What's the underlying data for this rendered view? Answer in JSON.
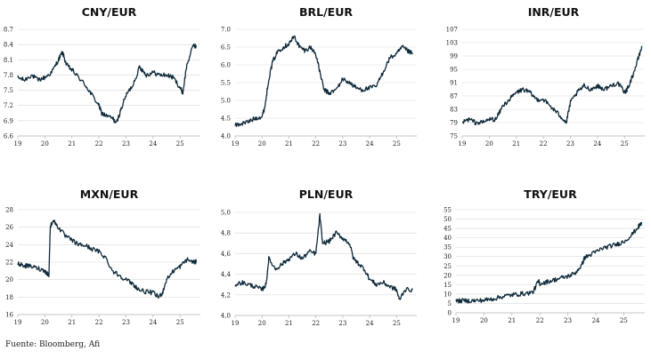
{
  "source": "Fuente: Bloomberg, Afi",
  "colors": {
    "line": "#0f2a3a",
    "grid": "#d9d9d9",
    "axis": "#b0b0b0",
    "text": "#222222"
  },
  "chart_data": [
    {
      "type": "line",
      "title": "CNY/EUR",
      "xlabel": "",
      "ylabel": "",
      "x_ticks": [
        "19",
        "20",
        "21",
        "22",
        "23",
        "24",
        "25"
      ],
      "y_ticks": [
        6.6,
        6.9,
        7.2,
        7.5,
        7.8,
        8.1,
        8.4,
        8.7
      ],
      "y_tick_labels": [
        "6.6",
        "6.9",
        "7.2",
        "7.5",
        "7.8",
        "8.1",
        "8.4",
        "8.7"
      ],
      "xlim": [
        2019,
        2025.75
      ],
      "ylim": [
        6.6,
        8.7
      ],
      "grid": "horizontal",
      "series": [
        {
          "x": [
            2019.0,
            2019.25,
            2019.5,
            2019.75,
            2020.0,
            2020.25,
            2020.5,
            2020.65,
            2020.8,
            2021.0,
            2021.25,
            2021.5,
            2021.75,
            2022.0,
            2022.1,
            2022.25,
            2022.5,
            2022.65,
            2022.8,
            2023.0,
            2023.25,
            2023.5,
            2023.6,
            2023.75,
            2024.0,
            2024.25,
            2024.5,
            2024.75,
            2025.0,
            2025.1,
            2025.25,
            2025.5,
            2025.6
          ],
          "y": [
            7.75,
            7.7,
            7.8,
            7.7,
            7.75,
            7.85,
            8.1,
            8.25,
            8.0,
            7.9,
            7.75,
            7.6,
            7.4,
            7.2,
            7.05,
            7.0,
            6.95,
            6.85,
            7.1,
            7.4,
            7.6,
            7.95,
            7.9,
            7.8,
            7.85,
            7.8,
            7.8,
            7.75,
            7.55,
            7.45,
            8.0,
            8.4,
            8.35
          ]
        }
      ]
    },
    {
      "type": "line",
      "title": "BRL/EUR",
      "xlabel": "",
      "ylabel": "",
      "x_ticks": [
        "19",
        "20",
        "21",
        "22",
        "23",
        "24",
        "25"
      ],
      "y_ticks": [
        4.0,
        4.5,
        5.0,
        5.5,
        6.0,
        6.5,
        7.0
      ],
      "y_tick_labels": [
        "4.0",
        "4.5",
        "5.0",
        "5.5",
        "6.0",
        "6.5",
        "7.0"
      ],
      "xlim": [
        2019,
        2025.75
      ],
      "ylim": [
        4.0,
        7.0
      ],
      "grid": "horizontal",
      "series": [
        {
          "x": [
            2019.0,
            2019.25,
            2019.5,
            2019.75,
            2020.0,
            2020.1,
            2020.25,
            2020.4,
            2020.6,
            2020.8,
            2021.0,
            2021.2,
            2021.4,
            2021.6,
            2021.8,
            2022.0,
            2022.15,
            2022.3,
            2022.5,
            2022.75,
            2023.0,
            2023.25,
            2023.5,
            2023.75,
            2024.0,
            2024.25,
            2024.5,
            2024.75,
            2025.0,
            2025.2,
            2025.4,
            2025.6
          ],
          "y": [
            4.3,
            4.35,
            4.4,
            4.5,
            4.55,
            4.8,
            5.6,
            6.1,
            6.4,
            6.5,
            6.6,
            6.8,
            6.5,
            6.4,
            6.5,
            6.3,
            5.8,
            5.3,
            5.2,
            5.3,
            5.6,
            5.5,
            5.35,
            5.3,
            5.35,
            5.4,
            5.8,
            6.2,
            6.3,
            6.5,
            6.4,
            6.3
          ]
        }
      ]
    },
    {
      "type": "line",
      "title": "INR/EUR",
      "xlabel": "",
      "ylabel": "",
      "x_ticks": [
        "19",
        "20",
        "21",
        "22",
        "23",
        "24",
        "25"
      ],
      "y_ticks": [
        75,
        79,
        83,
        87,
        91,
        95,
        99,
        103,
        107
      ],
      "y_tick_labels": [
        "75",
        "79",
        "83",
        "87",
        "91",
        "95",
        "99",
        "103",
        "107"
      ],
      "xlim": [
        2019,
        2025.75
      ],
      "ylim": [
        75,
        107
      ],
      "grid": "horizontal",
      "series": [
        {
          "x": [
            2019.0,
            2019.25,
            2019.5,
            2019.75,
            2020.0,
            2020.25,
            2020.5,
            2020.75,
            2021.0,
            2021.25,
            2021.5,
            2021.75,
            2022.0,
            2022.25,
            2022.5,
            2022.75,
            2022.85,
            2023.0,
            2023.25,
            2023.5,
            2023.75,
            2024.0,
            2024.25,
            2024.5,
            2024.75,
            2025.0,
            2025.1,
            2025.3,
            2025.5,
            2025.65
          ],
          "y": [
            79,
            80,
            79,
            79,
            80,
            80,
            84,
            86,
            88,
            89,
            88,
            86,
            86,
            84,
            82,
            80,
            79,
            85,
            88,
            90,
            89,
            90,
            89,
            90,
            91,
            88,
            89,
            93,
            98,
            102
          ]
        }
      ]
    },
    {
      "type": "line",
      "title": "MXN/EUR",
      "xlabel": "",
      "ylabel": "",
      "x_ticks": [
        "19",
        "20",
        "21",
        "22",
        "23",
        "24",
        "25"
      ],
      "y_ticks": [
        16,
        18,
        20,
        22,
        24,
        26,
        28
      ],
      "y_tick_labels": [
        "16",
        "18",
        "20",
        "22",
        "24",
        "26",
        "28"
      ],
      "xlim": [
        2019,
        2025.75
      ],
      "ylim": [
        16,
        28
      ],
      "grid": "horizontal",
      "series": [
        {
          "x": [
            2019.0,
            2019.25,
            2019.5,
            2019.75,
            2020.0,
            2020.15,
            2020.2,
            2020.3,
            2020.5,
            2020.75,
            2021.0,
            2021.25,
            2021.5,
            2021.75,
            2022.0,
            2022.25,
            2022.5,
            2022.75,
            2023.0,
            2023.25,
            2023.5,
            2023.75,
            2024.0,
            2024.2,
            2024.35,
            2024.5,
            2024.75,
            2025.0,
            2025.25,
            2025.5,
            2025.6
          ],
          "y": [
            21.8,
            21.6,
            21.5,
            21.3,
            21.0,
            20.5,
            26.0,
            26.8,
            26.0,
            25.0,
            24.5,
            24.0,
            23.9,
            23.5,
            23.2,
            22.5,
            21.0,
            20.5,
            20.0,
            19.5,
            18.8,
            18.6,
            18.5,
            18.0,
            18.5,
            20.0,
            21.0,
            21.5,
            22.3,
            22.0,
            22.0
          ]
        }
      ]
    },
    {
      "type": "line",
      "title": "PLN/EUR",
      "xlabel": "",
      "ylabel": "",
      "x_ticks": [
        "19",
        "20",
        "21",
        "22",
        "23",
        "24",
        "25"
      ],
      "y_ticks": [
        4.0,
        4.2,
        4.4,
        4.6,
        4.8,
        5.0
      ],
      "y_tick_labels": [
        "4,0",
        "4,2",
        "4,4",
        "4,6",
        "4,8",
        "5,0"
      ],
      "xlim": [
        2019,
        2025.75
      ],
      "ylim": [
        4.0,
        5.0
      ],
      "grid": "horizontal",
      "series": [
        {
          "x": [
            2019.0,
            2019.25,
            2019.5,
            2019.75,
            2020.0,
            2020.15,
            2020.25,
            2020.5,
            2020.75,
            2021.0,
            2021.25,
            2021.5,
            2021.75,
            2022.0,
            2022.15,
            2022.25,
            2022.5,
            2022.75,
            2023.0,
            2023.25,
            2023.4,
            2023.6,
            2023.8,
            2024.0,
            2024.25,
            2024.5,
            2024.75,
            2025.0,
            2025.1,
            2025.3,
            2025.6
          ],
          "y": [
            4.3,
            4.32,
            4.3,
            4.28,
            4.25,
            4.3,
            4.55,
            4.45,
            4.5,
            4.55,
            4.6,
            4.55,
            4.62,
            4.6,
            4.97,
            4.7,
            4.72,
            4.8,
            4.75,
            4.7,
            4.55,
            4.5,
            4.45,
            4.35,
            4.3,
            4.32,
            4.28,
            4.25,
            4.15,
            4.25,
            4.25
          ]
        }
      ]
    },
    {
      "type": "line",
      "title": "TRY/EUR",
      "xlabel": "",
      "ylabel": "",
      "x_ticks": [
        "19",
        "20",
        "21",
        "22",
        "23",
        "24",
        "25"
      ],
      "y_ticks": [
        0,
        5,
        10,
        15,
        20,
        25,
        30,
        35,
        40,
        45,
        50,
        55
      ],
      "y_tick_labels": [
        "0",
        "5",
        "10",
        "15",
        "20",
        "25",
        "30",
        "35",
        "40",
        "45",
        "50",
        "55"
      ],
      "xlim": [
        2019,
        2025.75
      ],
      "ylim": [
        0,
        55
      ],
      "grid": "horizontal",
      "series": [
        {
          "x": [
            2019.0,
            2019.25,
            2019.5,
            2019.75,
            2020.0,
            2020.25,
            2020.5,
            2020.75,
            2021.0,
            2021.25,
            2021.5,
            2021.75,
            2021.95,
            2022.0,
            2022.25,
            2022.5,
            2022.75,
            2023.0,
            2023.25,
            2023.5,
            2023.6,
            2023.75,
            2024.0,
            2024.25,
            2024.5,
            2024.75,
            2025.0,
            2025.25,
            2025.5,
            2025.65
          ],
          "y": [
            6.3,
            6.5,
            6.4,
            6.5,
            6.7,
            7.3,
            8.0,
            9.0,
            9.5,
            10.0,
            10.3,
            11.0,
            17.0,
            15.5,
            16.5,
            17.5,
            18.5,
            19.5,
            21.0,
            25.5,
            29.5,
            30.5,
            32.5,
            34.5,
            35.5,
            36.5,
            38.0,
            41.0,
            45.5,
            48.0
          ]
        }
      ]
    }
  ]
}
